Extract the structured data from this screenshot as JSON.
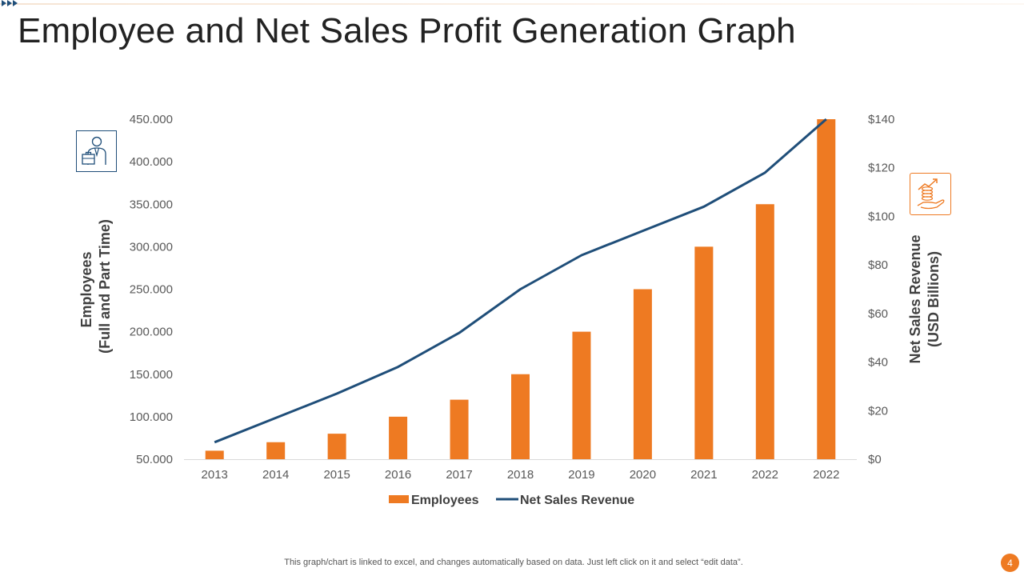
{
  "slide": {
    "title": "Employee and Net Sales Profit Generation Graph",
    "footer_note": "This graph/chart is linked to excel,  and changes automatically based on data. Just left click on it and select “edit data”.",
    "page_number": "4",
    "icons": {
      "left": "employee-briefcase-icon",
      "right": "money-growth-hand-icon"
    }
  },
  "colors": {
    "bar": "#ee7a22",
    "line": "#1f4e79",
    "axis": "#d9d9d9",
    "text": "#595959"
  },
  "chart_data": {
    "type": "bar",
    "title": "",
    "categories": [
      "2013",
      "2014",
      "2015",
      "2016",
      "2017",
      "2018",
      "2019",
      "2020",
      "2021",
      "2022",
      "2022"
    ],
    "series": [
      {
        "name": "Employees",
        "type": "bar",
        "axis": "left",
        "values": [
          60000,
          70000,
          80000,
          100000,
          120000,
          150000,
          200000,
          250000,
          300000,
          350000,
          450000
        ]
      },
      {
        "name": "Net Sales Revenue",
        "type": "line",
        "axis": "right",
        "values": [
          7,
          17,
          27,
          38,
          52,
          70,
          84,
          94,
          104,
          118,
          140
        ]
      }
    ],
    "ylabel": "Employees",
    "ylabel_sub": "(Full and Part Time)",
    "y2label": "Net Sales Revenue",
    "y2label_sub": "(USD Billions)",
    "ylim": [
      50000,
      450000
    ],
    "y2lim": [
      0,
      140
    ],
    "yticks": [
      "450.000",
      "400.000",
      "350.000",
      "300.000",
      "250.000",
      "200.000",
      "150.000",
      "100.000",
      "50.000"
    ],
    "y2ticks": [
      "$140",
      "$120",
      "$100",
      "$80",
      "$60",
      "$40",
      "$20",
      "$0"
    ],
    "legend": [
      "Employees",
      "Net Sales Revenue"
    ],
    "legend_position": "bottom",
    "grid": false
  }
}
